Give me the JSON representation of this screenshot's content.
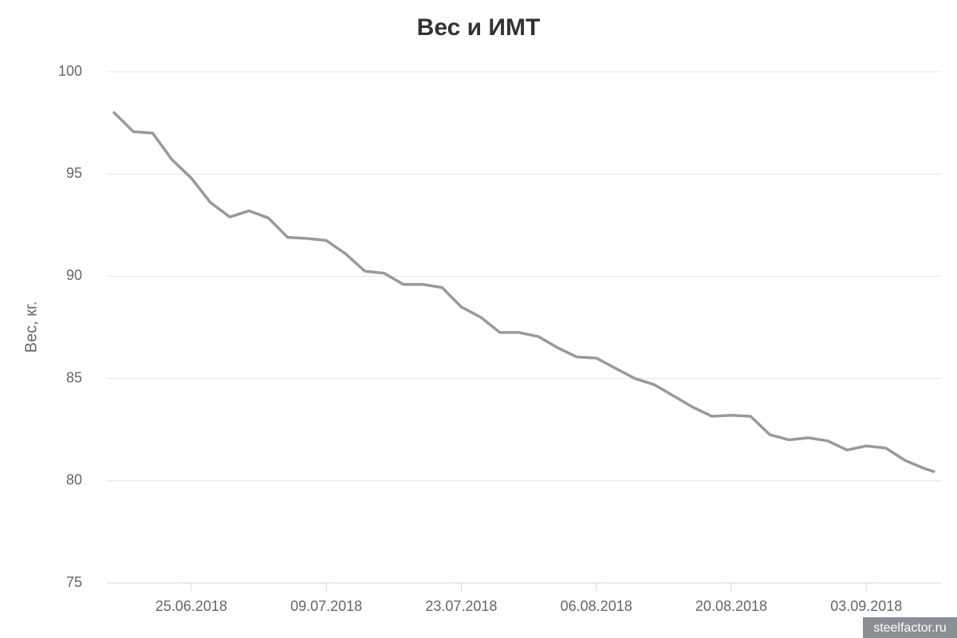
{
  "chart_data": {
    "type": "line",
    "title": "Вес и ИМТ",
    "y_label": "Вес, кг.",
    "watermark": "steelfactor.ru",
    "x": [
      "17.06.2018",
      "19.06.2018",
      "21.06.2018",
      "23.06.2018",
      "25.06.2018",
      "27.06.2018",
      "29.06.2018",
      "01.07.2018",
      "03.07.2018",
      "05.07.2018",
      "07.07.2018",
      "09.07.2018",
      "11.07.2018",
      "13.07.2018",
      "15.07.2018",
      "17.07.2018",
      "19.07.2018",
      "21.07.2018",
      "23.07.2018",
      "25.07.2018",
      "27.07.2018",
      "29.07.2018",
      "31.07.2018",
      "02.08.2018",
      "04.08.2018",
      "06.08.2018",
      "08.08.2018",
      "10.08.2018",
      "12.08.2018",
      "14.08.2018",
      "16.08.2018",
      "18.08.2018",
      "20.08.2018",
      "22.08.2018",
      "24.08.2018",
      "26.08.2018",
      "28.08.2018",
      "30.08.2018",
      "01.09.2018",
      "03.09.2018",
      "05.09.2018",
      "07.09.2018",
      "09.09.2018",
      "10.09.2018"
    ],
    "series": [
      {
        "name": "Вес",
        "color": "#999999",
        "values": [
          98.0,
          97.07,
          97.0,
          95.7,
          94.8,
          93.6,
          92.9,
          93.2,
          92.85,
          91.9,
          91.85,
          91.75,
          91.1,
          90.25,
          90.15,
          89.6,
          89.6,
          89.45,
          88.5,
          88.0,
          87.25,
          87.25,
          87.05,
          86.5,
          86.05,
          86.0,
          85.5,
          85.0,
          84.7,
          84.15,
          83.6,
          83.15,
          83.2,
          83.15,
          82.25,
          82.0,
          82.1,
          81.95,
          81.5,
          81.7,
          81.6,
          81.0,
          80.6,
          80.45
        ]
      }
    ],
    "xlim": [
      "16.06.2018",
      "11.09.2018"
    ],
    "xticks": [
      "25.06.2018",
      "09.07.2018",
      "23.07.2018",
      "06.08.2018",
      "20.08.2018",
      "03.09.2018"
    ],
    "ylim": [
      75,
      100
    ],
    "yticks": [
      75,
      80,
      85,
      90,
      95,
      100
    ],
    "grid": true
  }
}
